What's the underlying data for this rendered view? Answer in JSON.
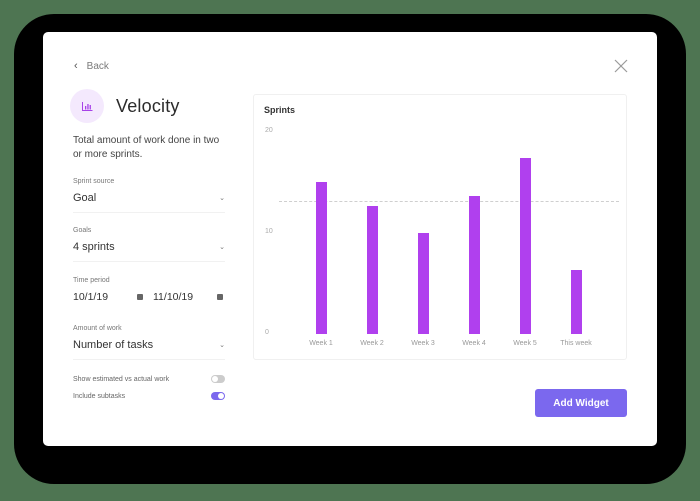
{
  "modal": {
    "back_label": "Back",
    "title": "Velocity",
    "description": "Total amount of work done in two or more sprints.",
    "icon": "bar-chart-icon",
    "close_icon": "close-icon"
  },
  "form": {
    "sprint_source": {
      "label": "Sprint source",
      "value": "Goal"
    },
    "goals": {
      "label": "Goals",
      "value": "4 sprints"
    },
    "time_period": {
      "label": "Time period",
      "start": "10/1/19",
      "end": "11/10/19"
    },
    "amount_of_work": {
      "label": "Amount of work",
      "value": "Number of tasks"
    },
    "toggles": [
      {
        "label": "Show estimated vs actual work",
        "on": false
      },
      {
        "label": "Include subtasks",
        "on": true
      }
    ]
  },
  "actions": {
    "add_widget_label": "Add Widget"
  },
  "colors": {
    "accent": "#7b68ee",
    "bar": "#b040ee",
    "icon_bg": "#f4e9fd"
  },
  "chart_data": {
    "type": "bar",
    "title": "Sprints",
    "categories": [
      "Week 1",
      "Week 2",
      "Week 3",
      "Week 4",
      "Week 5",
      "This week"
    ],
    "values": [
      15,
      12.7,
      10,
      13.7,
      17.4,
      6.3
    ],
    "average_line": 13.2,
    "yticks": [
      "20",
      "10",
      "0"
    ],
    "ylim": [
      0,
      20
    ],
    "xlabel": "",
    "ylabel": "",
    "grid": false,
    "legend": "none"
  }
}
